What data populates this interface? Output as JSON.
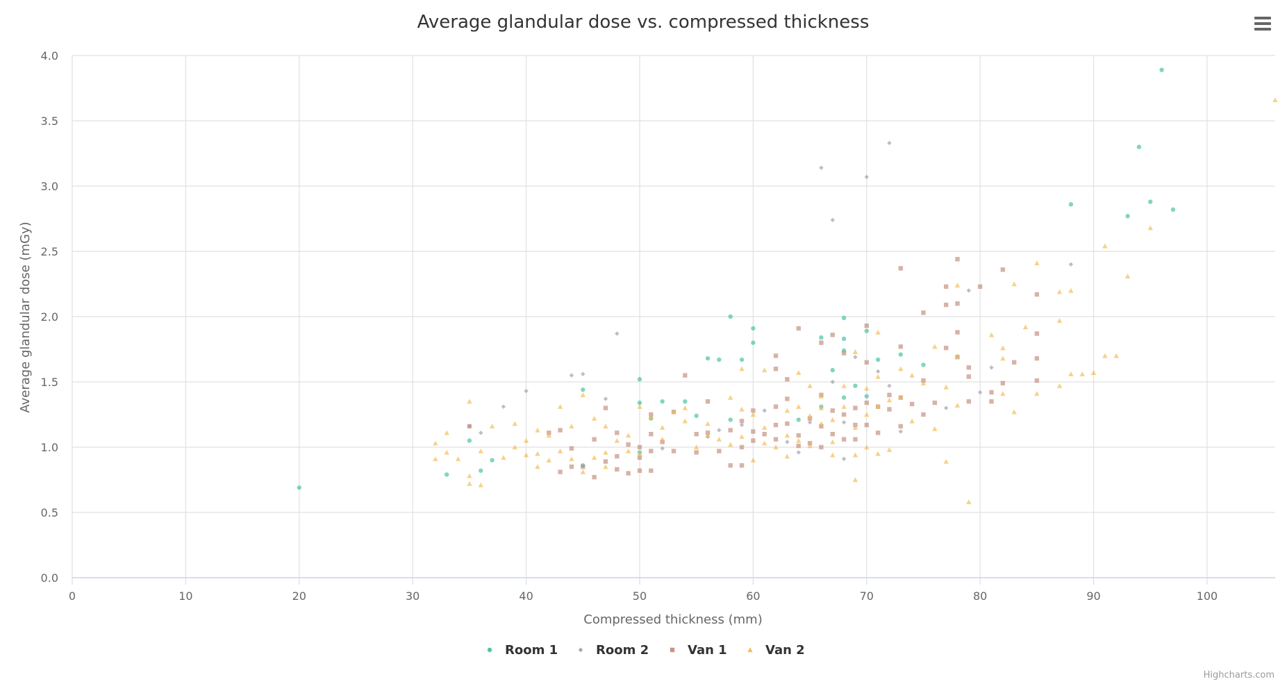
{
  "chart_data": {
    "type": "scatter",
    "title": "Average glandular dose vs. compressed thickness",
    "xlabel": "Compressed thickness (mm)",
    "ylabel": "Average glandular dose (mGy)",
    "xlim": [
      0,
      106
    ],
    "ylim": [
      0,
      4
    ],
    "x_ticks": [
      0,
      10,
      20,
      30,
      40,
      50,
      60,
      70,
      80,
      90,
      100
    ],
    "x_tick_labels": [
      "0",
      "10",
      "20",
      "30",
      "40",
      "50",
      "60",
      "70",
      "80",
      "90",
      "100"
    ],
    "y_ticks": [
      0,
      0.5,
      1,
      1.5,
      2,
      2.5,
      3,
      3.5,
      4
    ],
    "y_tick_labels": [
      "0.0",
      "0.5",
      "1.0",
      "1.5",
      "2.0",
      "2.5",
      "3.0",
      "3.5",
      "4.0"
    ],
    "grid": true,
    "legend_position": "bottom-center",
    "series": [
      {
        "name": "Room 1",
        "marker": "circle",
        "color": "#3fbf9c",
        "points": [
          [
            20,
            0.69
          ],
          [
            33,
            0.79
          ],
          [
            35,
            1.05
          ],
          [
            36,
            0.82
          ],
          [
            37,
            0.9
          ],
          [
            45,
            1.44
          ],
          [
            45,
            0.86
          ],
          [
            50,
            1.52
          ],
          [
            50,
            1.34
          ],
          [
            50,
            0.96
          ],
          [
            51,
            1.22
          ],
          [
            52,
            1.35
          ],
          [
            54,
            1.35
          ],
          [
            55,
            1.24
          ],
          [
            56,
            1.68
          ],
          [
            57,
            1.67
          ],
          [
            58,
            2.0
          ],
          [
            58,
            1.21
          ],
          [
            59,
            1.67
          ],
          [
            60,
            1.91
          ],
          [
            60,
            1.8
          ],
          [
            64,
            1.21
          ],
          [
            66,
            1.84
          ],
          [
            66,
            1.31
          ],
          [
            67,
            1.59
          ],
          [
            68,
            1.99
          ],
          [
            68,
            1.83
          ],
          [
            68,
            1.74
          ],
          [
            68,
            1.38
          ],
          [
            69,
            1.47
          ],
          [
            70,
            1.89
          ],
          [
            70,
            1.39
          ],
          [
            71,
            1.67
          ],
          [
            73,
            1.71
          ],
          [
            75,
            1.63
          ],
          [
            88,
            2.86
          ],
          [
            93,
            2.77
          ],
          [
            94,
            3.3
          ],
          [
            95,
            2.88
          ],
          [
            96,
            3.89
          ],
          [
            97,
            2.82
          ]
        ]
      },
      {
        "name": "Room 2",
        "marker": "diamond",
        "color": "#9a9aa6",
        "points": [
          [
            35,
            1.16
          ],
          [
            36,
            1.11
          ],
          [
            38,
            1.31
          ],
          [
            40,
            1.43
          ],
          [
            44,
            1.55
          ],
          [
            45,
            1.56
          ],
          [
            47,
            1.37
          ],
          [
            48,
            1.87
          ],
          [
            52,
            0.99
          ],
          [
            56,
            1.08
          ],
          [
            57,
            1.13
          ],
          [
            59,
            1.17
          ],
          [
            61,
            1.28
          ],
          [
            63,
            1.04
          ],
          [
            64,
            0.96
          ],
          [
            65,
            1.19
          ],
          [
            66,
            3.14
          ],
          [
            67,
            2.74
          ],
          [
            67,
            1.5
          ],
          [
            68,
            1.19
          ],
          [
            68,
            0.91
          ],
          [
            69,
            1.69
          ],
          [
            70,
            3.07
          ],
          [
            71,
            1.58
          ],
          [
            72,
            3.33
          ],
          [
            72,
            1.47
          ],
          [
            73,
            1.12
          ],
          [
            77,
            1.3
          ],
          [
            79,
            2.2
          ],
          [
            80,
            1.42
          ],
          [
            81,
            1.61
          ],
          [
            88,
            2.4
          ]
        ]
      },
      {
        "name": "Van 1",
        "marker": "square",
        "color": "#c08a78",
        "points": [
          [
            35,
            1.16
          ],
          [
            42,
            1.11
          ],
          [
            43,
            1.13
          ],
          [
            43,
            0.81
          ],
          [
            44,
            0.99
          ],
          [
            44,
            0.85
          ],
          [
            45,
            0.85
          ],
          [
            46,
            1.06
          ],
          [
            46,
            0.77
          ],
          [
            47,
            0.89
          ],
          [
            47,
            1.3
          ],
          [
            48,
            1.11
          ],
          [
            48,
            0.83
          ],
          [
            48,
            0.93
          ],
          [
            49,
            1.02
          ],
          [
            49,
            0.8
          ],
          [
            50,
            1.0
          ],
          [
            50,
            0.92
          ],
          [
            50,
            0.82
          ],
          [
            51,
            0.97
          ],
          [
            51,
            1.25
          ],
          [
            51,
            0.82
          ],
          [
            51,
            1.1
          ],
          [
            52,
            1.04
          ],
          [
            53,
            0.97
          ],
          [
            53,
            1.27
          ],
          [
            54,
            1.55
          ],
          [
            55,
            1.1
          ],
          [
            55,
            0.96
          ],
          [
            56,
            1.35
          ],
          [
            56,
            1.11
          ],
          [
            57,
            0.97
          ],
          [
            58,
            0.86
          ],
          [
            58,
            1.13
          ],
          [
            59,
            1.0
          ],
          [
            59,
            1.2
          ],
          [
            59,
            0.86
          ],
          [
            60,
            1.05
          ],
          [
            60,
            1.12
          ],
          [
            60,
            1.28
          ],
          [
            61,
            1.1
          ],
          [
            62,
            1.7
          ],
          [
            62,
            1.6
          ],
          [
            62,
            1.31
          ],
          [
            62,
            1.17
          ],
          [
            62,
            1.06
          ],
          [
            63,
            1.52
          ],
          [
            63,
            1.37
          ],
          [
            63,
            1.18
          ],
          [
            64,
            1.91
          ],
          [
            64,
            1.09
          ],
          [
            64,
            1.01
          ],
          [
            65,
            1.22
          ],
          [
            65,
            1.03
          ],
          [
            66,
            1.8
          ],
          [
            66,
            1.4
          ],
          [
            66,
            1.16
          ],
          [
            66,
            1.0
          ],
          [
            67,
            1.86
          ],
          [
            67,
            1.28
          ],
          [
            67,
            1.1
          ],
          [
            68,
            1.72
          ],
          [
            68,
            1.25
          ],
          [
            68,
            1.06
          ],
          [
            69,
            1.3
          ],
          [
            69,
            1.06
          ],
          [
            69,
            1.17
          ],
          [
            70,
            1.93
          ],
          [
            70,
            1.65
          ],
          [
            70,
            1.17
          ],
          [
            70,
            1.34
          ],
          [
            71,
            1.31
          ],
          [
            71,
            1.11
          ],
          [
            72,
            1.4
          ],
          [
            72,
            1.29
          ],
          [
            73,
            2.37
          ],
          [
            73,
            1.77
          ],
          [
            73,
            1.38
          ],
          [
            73,
            1.16
          ],
          [
            74,
            1.33
          ],
          [
            75,
            2.03
          ],
          [
            75,
            1.51
          ],
          [
            75,
            1.25
          ],
          [
            76,
            1.34
          ],
          [
            77,
            2.23
          ],
          [
            77,
            2.09
          ],
          [
            77,
            1.76
          ],
          [
            78,
            2.44
          ],
          [
            78,
            2.1
          ],
          [
            78,
            1.88
          ],
          [
            78,
            1.69
          ],
          [
            79,
            1.61
          ],
          [
            79,
            1.54
          ],
          [
            79,
            1.35
          ],
          [
            80,
            2.23
          ],
          [
            81,
            1.42
          ],
          [
            81,
            1.35
          ],
          [
            82,
            2.36
          ],
          [
            82,
            1.49
          ],
          [
            83,
            1.65
          ],
          [
            85,
            2.17
          ],
          [
            85,
            1.87
          ],
          [
            85,
            1.68
          ],
          [
            85,
            1.51
          ]
        ]
      },
      {
        "name": "Van 2",
        "marker": "triangle",
        "color": "#f2b84a",
        "points": [
          [
            32,
            1.03
          ],
          [
            32,
            0.91
          ],
          [
            33,
            1.11
          ],
          [
            33,
            0.96
          ],
          [
            34,
            0.91
          ],
          [
            35,
            1.35
          ],
          [
            35,
            0.78
          ],
          [
            35,
            0.72
          ],
          [
            36,
            0.97
          ],
          [
            36,
            0.71
          ],
          [
            37,
            1.16
          ],
          [
            38,
            0.92
          ],
          [
            39,
            1.18
          ],
          [
            39,
            1.0
          ],
          [
            40,
            0.94
          ],
          [
            40,
            1.05
          ],
          [
            41,
            1.13
          ],
          [
            41,
            0.85
          ],
          [
            41,
            0.95
          ],
          [
            42,
            1.09
          ],
          [
            42,
            0.9
          ],
          [
            43,
            1.31
          ],
          [
            43,
            0.97
          ],
          [
            44,
            1.16
          ],
          [
            44,
            0.91
          ],
          [
            45,
            1.4
          ],
          [
            45,
            0.81
          ],
          [
            46,
            1.22
          ],
          [
            46,
            0.92
          ],
          [
            47,
            1.16
          ],
          [
            47,
            0.96
          ],
          [
            47,
            0.85
          ],
          [
            48,
            1.05
          ],
          [
            49,
            1.09
          ],
          [
            49,
            0.97
          ],
          [
            50,
            1.31
          ],
          [
            50,
            0.95
          ],
          [
            51,
            1.23
          ],
          [
            52,
            1.15
          ],
          [
            52,
            1.06
          ],
          [
            53,
            1.27
          ],
          [
            54,
            1.3
          ],
          [
            54,
            1.2
          ],
          [
            55,
            1.0
          ],
          [
            56,
            1.18
          ],
          [
            56,
            1.09
          ],
          [
            57,
            1.06
          ],
          [
            58,
            1.38
          ],
          [
            58,
            1.02
          ],
          [
            59,
            1.6
          ],
          [
            59,
            1.29
          ],
          [
            59,
            1.08
          ],
          [
            60,
            1.25
          ],
          [
            60,
            0.9
          ],
          [
            61,
            1.59
          ],
          [
            61,
            1.15
          ],
          [
            61,
            1.03
          ],
          [
            62,
            1.0
          ],
          [
            63,
            1.28
          ],
          [
            63,
            1.09
          ],
          [
            63,
            0.93
          ],
          [
            64,
            1.57
          ],
          [
            64,
            1.31
          ],
          [
            64,
            1.05
          ],
          [
            65,
            1.47
          ],
          [
            65,
            1.24
          ],
          [
            65,
            1.01
          ],
          [
            66,
            1.39
          ],
          [
            66,
            1.3
          ],
          [
            66,
            1.18
          ],
          [
            67,
            1.21
          ],
          [
            67,
            1.04
          ],
          [
            67,
            0.94
          ],
          [
            68,
            1.47
          ],
          [
            68,
            1.31
          ],
          [
            69,
            1.73
          ],
          [
            69,
            1.15
          ],
          [
            69,
            0.94
          ],
          [
            69,
            0.75
          ],
          [
            70,
            1.45
          ],
          [
            70,
            1.25
          ],
          [
            70,
            1.0
          ],
          [
            71,
            1.88
          ],
          [
            71,
            1.54
          ],
          [
            71,
            1.31
          ],
          [
            71,
            0.95
          ],
          [
            72,
            1.36
          ],
          [
            72,
            0.98
          ],
          [
            73,
            1.6
          ],
          [
            73,
            1.38
          ],
          [
            74,
            1.55
          ],
          [
            74,
            1.2
          ],
          [
            75,
            1.49
          ],
          [
            76,
            1.77
          ],
          [
            76,
            1.14
          ],
          [
            77,
            1.46
          ],
          [
            77,
            0.89
          ],
          [
            78,
            2.24
          ],
          [
            78,
            1.7
          ],
          [
            78,
            1.32
          ],
          [
            79,
            0.58
          ],
          [
            81,
            1.86
          ],
          [
            82,
            1.76
          ],
          [
            82,
            1.68
          ],
          [
            82,
            1.41
          ],
          [
            83,
            2.25
          ],
          [
            83,
            1.27
          ],
          [
            84,
            1.92
          ],
          [
            85,
            2.41
          ],
          [
            85,
            1.41
          ],
          [
            87,
            2.19
          ],
          [
            87,
            1.97
          ],
          [
            87,
            1.47
          ],
          [
            88,
            2.2
          ],
          [
            88,
            1.56
          ],
          [
            89,
            1.56
          ],
          [
            90,
            1.57
          ],
          [
            91,
            2.54
          ],
          [
            91,
            1.7
          ],
          [
            92,
            1.7
          ],
          [
            93,
            2.31
          ],
          [
            95,
            2.68
          ],
          [
            106,
            3.66
          ]
        ]
      }
    ]
  },
  "ui": {
    "menu_icon": "hamburger-menu-icon",
    "credits": "Highcharts.com"
  }
}
